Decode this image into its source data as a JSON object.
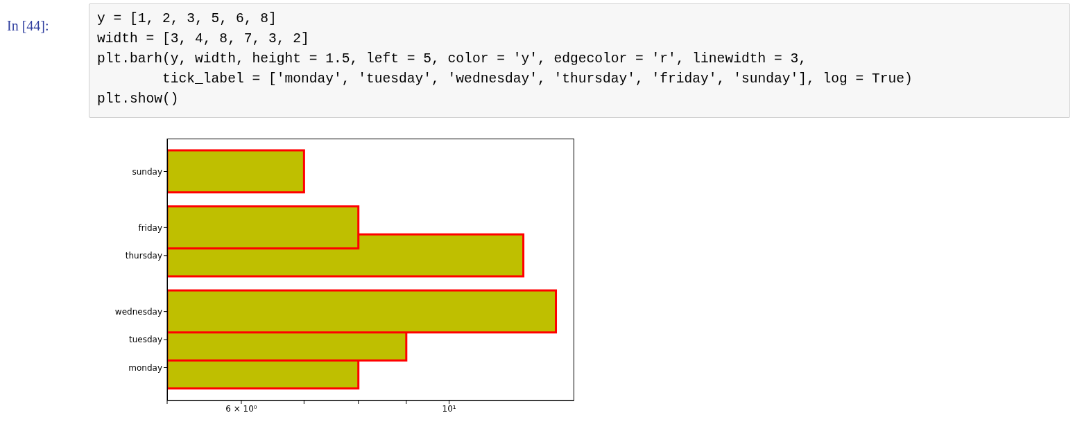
{
  "chart_data": {
    "type": "bar",
    "orientation": "horizontal",
    "categories": [
      "sunday",
      null,
      "friday",
      "thursday",
      null,
      "wednesday",
      "tuesday",
      "monday"
    ],
    "values": [
      2,
      null,
      3,
      7,
      null,
      8,
      4,
      3
    ],
    "base": [
      5,
      null,
      5,
      5,
      null,
      5,
      5,
      5
    ],
    "color": "#bfbf00",
    "log": "x",
    "xlim": [
      5,
      13.6
    ],
    "xticks": [
      {
        "value": 5,
        "label": null
      },
      {
        "value": 6,
        "label": "6 × 10⁰"
      },
      {
        "value": 7,
        "label": null
      },
      {
        "value": 8,
        "label": null
      },
      {
        "value": 9,
        "label": null
      },
      {
        "value": 10,
        "label": "10¹"
      }
    ],
    "annotations": [
      "In [44]:",
      "y = [1, 2, 3, 5, 6, 8]",
      "width = [3, 4, 8, 7, 3, 2]",
      "plt.barh(y, width, height = 1.5, left = 5, color = 'y', edgecolor = 'r', linewidth = 3,",
      "        tick_label = ['monday', 'tuesday', 'wednesday', 'thursday', 'friday', 'sunday'], log = True)",
      "plt.show()"
    ]
  }
}
